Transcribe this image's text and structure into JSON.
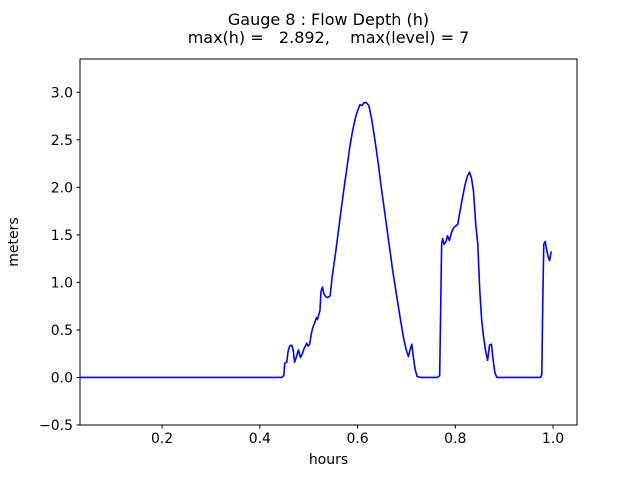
{
  "chart_data": {
    "type": "line",
    "title": "Gauge 8 : Flow Depth (h)",
    "subtitle": "max(h) =   2.892,    max(level) = 7",
    "xlabel": "hours",
    "ylabel": "meters",
    "xlim": [
      0.032,
      1.049
    ],
    "ylim": [
      -0.5,
      3.35
    ],
    "xticks": [
      0.2,
      0.4,
      0.6,
      0.8,
      1.0
    ],
    "xtick_labels": [
      "0.2",
      "0.4",
      "0.6",
      "0.8",
      "1.0"
    ],
    "yticks": [
      -0.5,
      0.0,
      0.5,
      1.0,
      1.5,
      2.0,
      2.5,
      3.0
    ],
    "ytick_labels": [
      "−0.5",
      "0.0",
      "0.5",
      "1.0",
      "1.5",
      "2.0",
      "2.5",
      "3.0"
    ],
    "grid": false,
    "legend": null,
    "line_color": "#0000ff",
    "spine_color": "#000000",
    "annotations": {
      "max_h": 2.892,
      "max_level": 7
    },
    "series": [
      {
        "name": "h",
        "points": [
          [
            0.032,
            0
          ],
          [
            0.1,
            0
          ],
          [
            0.2,
            0
          ],
          [
            0.3,
            0
          ],
          [
            0.4,
            0
          ],
          [
            0.445,
            0
          ],
          [
            0.449,
            0.02
          ],
          [
            0.451,
            0.15
          ],
          [
            0.455,
            0.16
          ],
          [
            0.458,
            0.28
          ],
          [
            0.461,
            0.33
          ],
          [
            0.465,
            0.34
          ],
          [
            0.468,
            0.3
          ],
          [
            0.471,
            0.16
          ],
          [
            0.475,
            0.22
          ],
          [
            0.479,
            0.29
          ],
          [
            0.483,
            0.21
          ],
          [
            0.487,
            0.25
          ],
          [
            0.491,
            0.31
          ],
          [
            0.496,
            0.36
          ],
          [
            0.499,
            0.33
          ],
          [
            0.502,
            0.35
          ],
          [
            0.505,
            0.45
          ],
          [
            0.508,
            0.52
          ],
          [
            0.511,
            0.56
          ],
          [
            0.514,
            0.6
          ],
          [
            0.516,
            0.63
          ],
          [
            0.518,
            0.61
          ],
          [
            0.521,
            0.67
          ],
          [
            0.523,
            0.7
          ],
          [
            0.525,
            0.9
          ],
          [
            0.528,
            0.95
          ],
          [
            0.531,
            0.88
          ],
          [
            0.535,
            0.85
          ],
          [
            0.539,
            0.84
          ],
          [
            0.544,
            0.86
          ],
          [
            0.548,
            1.06
          ],
          [
            0.552,
            1.2
          ],
          [
            0.556,
            1.35
          ],
          [
            0.561,
            1.55
          ],
          [
            0.566,
            1.75
          ],
          [
            0.572,
            1.98
          ],
          [
            0.578,
            2.2
          ],
          [
            0.584,
            2.42
          ],
          [
            0.59,
            2.6
          ],
          [
            0.596,
            2.74
          ],
          [
            0.601,
            2.82
          ],
          [
            0.605,
            2.87
          ],
          [
            0.609,
            2.86
          ],
          [
            0.613,
            2.89
          ],
          [
            0.618,
            2.892
          ],
          [
            0.623,
            2.86
          ],
          [
            0.628,
            2.74
          ],
          [
            0.634,
            2.55
          ],
          [
            0.641,
            2.3
          ],
          [
            0.648,
            2.02
          ],
          [
            0.656,
            1.72
          ],
          [
            0.664,
            1.42
          ],
          [
            0.672,
            1.12
          ],
          [
            0.68,
            0.86
          ],
          [
            0.688,
            0.6
          ],
          [
            0.694,
            0.42
          ],
          [
            0.699,
            0.3
          ],
          [
            0.704,
            0.22
          ],
          [
            0.708,
            0.3
          ],
          [
            0.711,
            0.35
          ],
          [
            0.714,
            0.22
          ],
          [
            0.718,
            0.08
          ],
          [
            0.722,
            0.01
          ],
          [
            0.73,
            0
          ],
          [
            0.75,
            0
          ],
          [
            0.763,
            0
          ],
          [
            0.768,
            0.02
          ],
          [
            0.77,
            0.7
          ],
          [
            0.772,
            1.4
          ],
          [
            0.774,
            1.46
          ],
          [
            0.777,
            1.4
          ],
          [
            0.781,
            1.43
          ],
          [
            0.784,
            1.49
          ],
          [
            0.788,
            1.44
          ],
          [
            0.792,
            1.52
          ],
          [
            0.796,
            1.57
          ],
          [
            0.8,
            1.59
          ],
          [
            0.805,
            1.61
          ],
          [
            0.81,
            1.76
          ],
          [
            0.815,
            1.9
          ],
          [
            0.82,
            2.03
          ],
          [
            0.825,
            2.12
          ],
          [
            0.829,
            2.16
          ],
          [
            0.833,
            2.1
          ],
          [
            0.837,
            1.97
          ],
          [
            0.842,
            1.6
          ],
          [
            0.846,
            1.4
          ],
          [
            0.85,
            0.92
          ],
          [
            0.854,
            0.6
          ],
          [
            0.858,
            0.42
          ],
          [
            0.862,
            0.28
          ],
          [
            0.866,
            0.18
          ],
          [
            0.87,
            0.34
          ],
          [
            0.874,
            0.35
          ],
          [
            0.877,
            0.2
          ],
          [
            0.881,
            0.05
          ],
          [
            0.885,
            0.0
          ],
          [
            0.9,
            0
          ],
          [
            0.93,
            0
          ],
          [
            0.96,
            0
          ],
          [
            0.974,
            0
          ],
          [
            0.977,
            0.03
          ],
          [
            0.979,
            0.8
          ],
          [
            0.981,
            1.4
          ],
          [
            0.984,
            1.43
          ],
          [
            0.987,
            1.34
          ],
          [
            0.99,
            1.27
          ],
          [
            0.993,
            1.23
          ],
          [
            0.996,
            1.32
          ]
        ]
      }
    ]
  }
}
